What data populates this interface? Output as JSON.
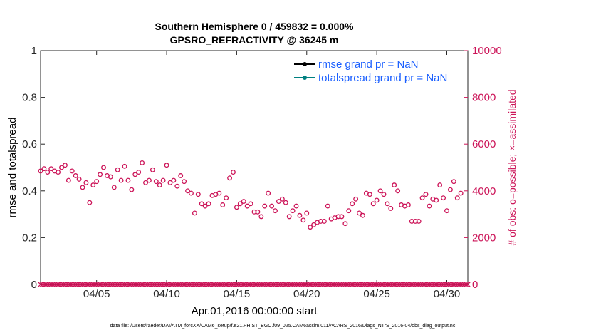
{
  "chart_data": {
    "type": "scatter",
    "title_line1": "Southern Hemisphere 0 / 459832 = 0.000%",
    "title_line2": "GPSRO_REFRACTIVITY @ 36245 m",
    "xlabel": "Apr.01,2016 00:00:00 start",
    "ylabel_left": "rmse and totalspread",
    "ylabel_right": "# of obs: o=possible; ×=assimilated",
    "left_ylim": [
      0,
      1
    ],
    "left_yticks": [
      "0",
      "0.2",
      "0.4",
      "0.6",
      "0.8",
      "1"
    ],
    "right_ylim": [
      0,
      10000
    ],
    "right_yticks": [
      "0",
      "2000",
      "4000",
      "6000",
      "8000",
      "10000"
    ],
    "xlim": [
      1.0,
      31.5
    ],
    "x_ticks": [
      {
        "day": 5,
        "label": "04/05"
      },
      {
        "day": 10,
        "label": "04/10"
      },
      {
        "day": 15,
        "label": "04/15"
      },
      {
        "day": 20,
        "label": "04/20"
      },
      {
        "day": 25,
        "label": "04/25"
      },
      {
        "day": 30,
        "label": "04/30"
      }
    ],
    "legend": [
      {
        "label": "rmse grand pr = NaN",
        "color": "#000000"
      },
      {
        "label": "totalspread grand pr = NaN",
        "color": "#008080"
      }
    ],
    "possible_start_day": 1.0,
    "possible_step_days": 0.25,
    "possible_obs": [
      4850,
      4950,
      4800,
      4950,
      4850,
      4800,
      5000,
      5100,
      4450,
      4850,
      4650,
      4500,
      4150,
      4350,
      3500,
      4250,
      4400,
      4700,
      5000,
      4650,
      4600,
      4150,
      4900,
      4450,
      5050,
      4450,
      4050,
      4700,
      4800,
      5200,
      4350,
      4450,
      4900,
      4400,
      4250,
      4450,
      5100,
      4350,
      4450,
      4200,
      4650,
      4400,
      4000,
      3900,
      3050,
      3850,
      3450,
      3350,
      3450,
      3800,
      3850,
      3900,
      3400,
      3700,
      4550,
      4800,
      3300,
      3450,
      3550,
      3350,
      3450,
      3100,
      3100,
      2900,
      3350,
      3900,
      3350,
      3150,
      3550,
      3650,
      3500,
      2900,
      3150,
      3350,
      2950,
      2750,
      3050,
      2450,
      2550,
      2650,
      2700,
      2700,
      3350,
      2800,
      2850,
      2900,
      2900,
      2600,
      3150,
      3450,
      3650,
      3050,
      2950,
      3900,
      3850,
      3450,
      3600,
      4000,
      3850,
      3450,
      3250,
      4250,
      4000,
      3400,
      3350,
      3400,
      2700,
      2700,
      2700,
      3700,
      3850,
      3350,
      3650,
      3600,
      4250,
      3700,
      3150,
      4050,
      4400,
      3700,
      3900
    ],
    "assimilated_start_day": 1.0,
    "assimilated_step_days": 0.125,
    "assimilated_count": 245,
    "assimilated_value": 0
  },
  "footer": "data file: /Users/raeder/DAI/ATM_forcXX/CAM6_setup/f.e21.FHIST_BGC.f09_025.CAM6assim.011/ACARS_2016/Diags_NTrS_2016-04/obs_diag_output.nc",
  "colors": {
    "obs": "#cc1458",
    "axis": "#262626",
    "legend_text": "#1a5fff",
    "rmse": "#000000",
    "spread": "#008080"
  }
}
